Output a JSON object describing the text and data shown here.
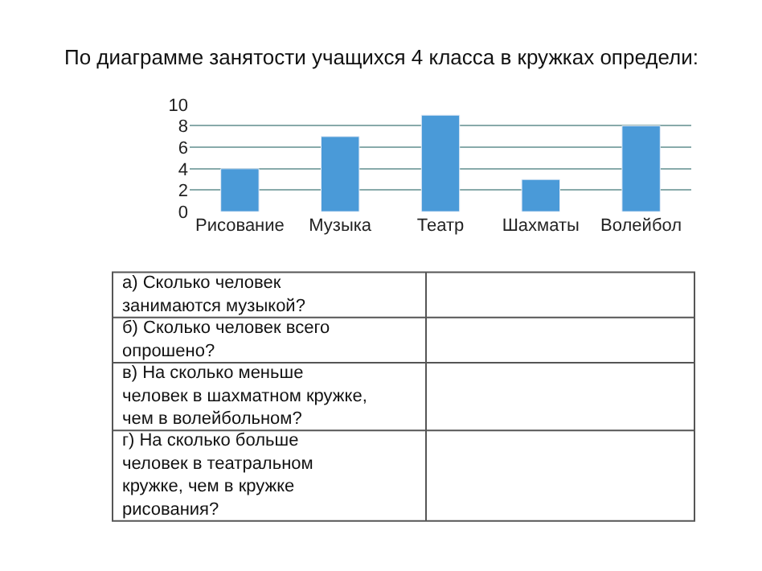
{
  "chart_data": {
    "type": "bar",
    "title": "По диаграмме занятости учащихся 4 класса в кружках определи:",
    "categories": [
      "Рисование",
      "Музыка",
      "Театр",
      "Шахматы",
      "Волейбол"
    ],
    "values": [
      4,
      7,
      9,
      3,
      8
    ],
    "color": "#4a9ad8",
    "ylim": [
      0,
      10
    ],
    "yticks": [
      0,
      2,
      4,
      6,
      8,
      10
    ],
    "grid": "y",
    "annotations": [
      "а) Сколько человек занимаются музыкой?",
      "б) Сколько человек всего опрошено?",
      "в) На сколько меньше человек в шахматном кружке, чем в волейбольном?",
      "г) На сколько больше человек в театральном кружке, чем в кружке рисования?"
    ]
  }
}
